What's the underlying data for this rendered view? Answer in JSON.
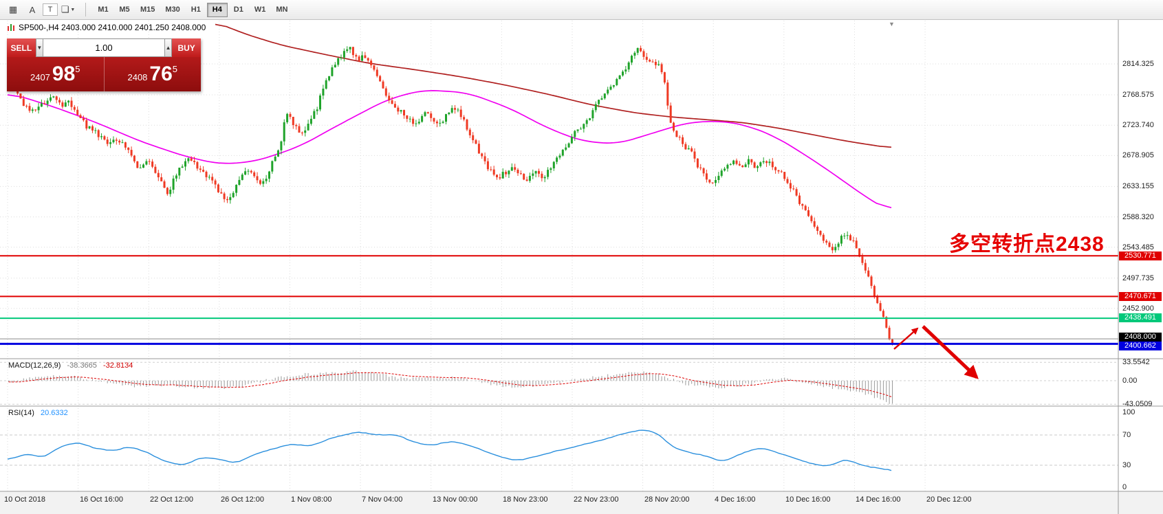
{
  "toolbar": {
    "cursor_icon_label": "A",
    "text_icon_label": "T",
    "timeframes": [
      {
        "label": "M1",
        "active": false
      },
      {
        "label": "M5",
        "active": false
      },
      {
        "label": "M15",
        "active": false
      },
      {
        "label": "M30",
        "active": false
      },
      {
        "label": "H1",
        "active": false
      },
      {
        "label": "H4",
        "active": true
      },
      {
        "label": "D1",
        "active": false
      },
      {
        "label": "W1",
        "active": false
      },
      {
        "label": "MN",
        "active": false
      }
    ]
  },
  "chart": {
    "header": "SP500-,H4  2403.000 2410.000 2401.250 2408.000",
    "symbol": "SP500-",
    "period": "H4",
    "ohlc": {
      "open": "2403.000",
      "high": "2410.000",
      "low": "2401.250",
      "close": "2408.000"
    }
  },
  "trade_panel": {
    "sell_label": "SELL",
    "buy_label": "BUY",
    "volume": "1.00",
    "bid": {
      "main": "2407",
      "pips": "98",
      "point": "5"
    },
    "ask": {
      "main": "2408",
      "pips": "76",
      "point": "5"
    }
  },
  "annotation": {
    "text": "多空转折点2438",
    "color": "#e60000"
  },
  "price_axis": {
    "labels": [
      "2814.325",
      "2768.575",
      "2723.740",
      "2678.905",
      "2633.155",
      "2588.320",
      "2543.485",
      "2497.735",
      "2452.900"
    ]
  },
  "hlines": [
    {
      "label": "2530.771",
      "price": 2530.771,
      "color": "#e00000",
      "lw": 2
    },
    {
      "label": "2470.671",
      "price": 2470.671,
      "color": "#e00000",
      "lw": 2
    },
    {
      "label": "2438.491",
      "price": 2438.491,
      "color": "#00c87a",
      "lw": 2
    },
    {
      "label": "2400.662",
      "price": 2400.662,
      "color": "#0000e0",
      "lw": 3
    }
  ],
  "current_price": {
    "label": "2408.000",
    "price": 2408.0
  },
  "macd": {
    "name": "MACD(12,26,9)",
    "value": "-38.3665",
    "signal_value": "-32.8134",
    "axis_labels": [
      "33.5542",
      "0.00",
      "-43.0509"
    ]
  },
  "rsi": {
    "name": "RSI(14)",
    "value": "20.6332",
    "axis_labels": [
      "100",
      "70",
      "30",
      "0"
    ]
  },
  "time_axis": {
    "labels": [
      "10 Oct 2018",
      "16 Oct 16:00",
      "22 Oct 12:00",
      "26 Oct 12:00",
      "1 Nov 08:00",
      "7 Nov 04:00",
      "13 Nov 00:00",
      "18 Nov 23:00",
      "22 Nov 23:00",
      "28 Nov 20:00",
      "4 Dec 16:00",
      "10 Dec 16:00",
      "14 Dec 16:00",
      "20 Dec 12:00"
    ]
  },
  "chart_data": {
    "type": "candlestick",
    "symbol": "SP500-",
    "timeframe": "H4",
    "title": "SP500-,H4",
    "current_bar": {
      "open": 2403.0,
      "high": 2410.0,
      "low": 2401.25,
      "close": 2408.0
    },
    "bid": 2407.985,
    "ask": 2408.765,
    "price_axis_ticks": [
      2814.325,
      2768.575,
      2723.74,
      2678.905,
      2633.155,
      2588.32,
      2543.485,
      2497.735,
      2452.9
    ],
    "x_tick_labels": [
      "10 Oct 2018",
      "16 Oct 16:00",
      "22 Oct 12:00",
      "26 Oct 12:00",
      "1 Nov 08:00",
      "7 Nov 04:00",
      "13 Nov 00:00",
      "18 Nov 23:00",
      "22 Nov 23:00",
      "28 Nov 20:00",
      "4 Dec 16:00",
      "10 Dec 16:00",
      "14 Dec 16:00",
      "20 Dec 12:00"
    ],
    "horizontal_lines": [
      2530.771,
      2470.671,
      2438.491,
      2400.662
    ],
    "up_color": "#1fa32a",
    "down_color": "#ef3a24",
    "price_path": [
      [
        0.0,
        2788
      ],
      [
        0.006,
        2804
      ],
      [
        0.014,
        2772
      ],
      [
        0.022,
        2752
      ],
      [
        0.032,
        2742
      ],
      [
        0.042,
        2756
      ],
      [
        0.052,
        2766
      ],
      [
        0.062,
        2752
      ],
      [
        0.072,
        2758
      ],
      [
        0.082,
        2738
      ],
      [
        0.092,
        2722
      ],
      [
        0.103,
        2712
      ],
      [
        0.113,
        2698
      ],
      [
        0.123,
        2706
      ],
      [
        0.133,
        2696
      ],
      [
        0.142,
        2678
      ],
      [
        0.15,
        2658
      ],
      [
        0.158,
        2672
      ],
      [
        0.166,
        2662
      ],
      [
        0.175,
        2640
      ],
      [
        0.183,
        2620
      ],
      [
        0.19,
        2645
      ],
      [
        0.198,
        2660
      ],
      [
        0.207,
        2673
      ],
      [
        0.217,
        2662
      ],
      [
        0.226,
        2649
      ],
      [
        0.235,
        2638
      ],
      [
        0.243,
        2622
      ],
      [
        0.251,
        2610
      ],
      [
        0.258,
        2626
      ],
      [
        0.266,
        2648
      ],
      [
        0.275,
        2656
      ],
      [
        0.283,
        2646
      ],
      [
        0.291,
        2636
      ],
      [
        0.3,
        2662
      ],
      [
        0.31,
        2692
      ],
      [
        0.318,
        2742
      ],
      [
        0.326,
        2726
      ],
      [
        0.334,
        2708
      ],
      [
        0.342,
        2726
      ],
      [
        0.352,
        2748
      ],
      [
        0.362,
        2788
      ],
      [
        0.372,
        2812
      ],
      [
        0.382,
        2830
      ],
      [
        0.39,
        2840
      ],
      [
        0.398,
        2818
      ],
      [
        0.406,
        2826
      ],
      [
        0.414,
        2812
      ],
      [
        0.422,
        2792
      ],
      [
        0.43,
        2772
      ],
      [
        0.438,
        2756
      ],
      [
        0.447,
        2744
      ],
      [
        0.456,
        2732
      ],
      [
        0.465,
        2722
      ],
      [
        0.474,
        2742
      ],
      [
        0.483,
        2734
      ],
      [
        0.492,
        2726
      ],
      [
        0.501,
        2744
      ],
      [
        0.51,
        2748
      ],
      [
        0.519,
        2728
      ],
      [
        0.528,
        2706
      ],
      [
        0.537,
        2682
      ],
      [
        0.546,
        2660
      ],
      [
        0.555,
        2646
      ],
      [
        0.564,
        2652
      ],
      [
        0.573,
        2658
      ],
      [
        0.582,
        2650
      ],
      [
        0.591,
        2644
      ],
      [
        0.6,
        2654
      ],
      [
        0.609,
        2646
      ],
      [
        0.618,
        2662
      ],
      [
        0.628,
        2684
      ],
      [
        0.638,
        2702
      ],
      [
        0.648,
        2718
      ],
      [
        0.658,
        2730
      ],
      [
        0.668,
        2752
      ],
      [
        0.678,
        2772
      ],
      [
        0.688,
        2786
      ],
      [
        0.698,
        2800
      ],
      [
        0.706,
        2820
      ],
      [
        0.714,
        2840
      ],
      [
        0.722,
        2824
      ],
      [
        0.73,
        2812
      ],
      [
        0.738,
        2818
      ],
      [
        0.745,
        2790
      ],
      [
        0.752,
        2728
      ],
      [
        0.76,
        2708
      ],
      [
        0.768,
        2694
      ],
      [
        0.776,
        2682
      ],
      [
        0.784,
        2662
      ],
      [
        0.792,
        2648
      ],
      [
        0.8,
        2636
      ],
      [
        0.808,
        2652
      ],
      [
        0.816,
        2664
      ],
      [
        0.824,
        2670
      ],
      [
        0.832,
        2662
      ],
      [
        0.84,
        2672
      ],
      [
        0.848,
        2660
      ],
      [
        0.856,
        2676
      ],
      [
        0.864,
        2668
      ],
      [
        0.872,
        2660
      ],
      [
        0.88,
        2648
      ],
      [
        0.888,
        2634
      ],
      [
        0.896,
        2616
      ],
      [
        0.904,
        2598
      ],
      [
        0.912,
        2582
      ],
      [
        0.92,
        2566
      ],
      [
        0.928,
        2550
      ],
      [
        0.936,
        2538
      ],
      [
        0.944,
        2556
      ],
      [
        0.952,
        2564
      ],
      [
        0.96,
        2548
      ],
      [
        0.968,
        2528
      ],
      [
        0.976,
        2498
      ],
      [
        0.984,
        2468
      ],
      [
        0.99,
        2450
      ],
      [
        0.995,
        2438
      ],
      [
        1.0,
        2404
      ]
    ],
    "ma_fast": {
      "name": "MA-fast",
      "color": "#f000f0",
      "points": [
        [
          0.0,
          2772
        ],
        [
          0.05,
          2752
        ],
        [
          0.1,
          2728
        ],
        [
          0.15,
          2700
        ],
        [
          0.2,
          2678
        ],
        [
          0.24,
          2666
        ],
        [
          0.28,
          2670
        ],
        [
          0.33,
          2692
        ],
        [
          0.38,
          2728
        ],
        [
          0.43,
          2762
        ],
        [
          0.47,
          2776
        ],
        [
          0.52,
          2772
        ],
        [
          0.57,
          2748
        ],
        [
          0.61,
          2720
        ],
        [
          0.65,
          2700
        ],
        [
          0.69,
          2696
        ],
        [
          0.73,
          2712
        ],
        [
          0.77,
          2728
        ],
        [
          0.81,
          2730
        ],
        [
          0.84,
          2722
        ],
        [
          0.87,
          2706
        ],
        [
          0.9,
          2682
        ],
        [
          0.93,
          2656
        ],
        [
          0.96,
          2628
        ],
        [
          0.98,
          2610
        ],
        [
          1.0,
          2596
        ]
      ]
    },
    "ma_slow": {
      "name": "MA-slow",
      "color": "#b02020",
      "points": [
        [
          0.235,
          2876
        ],
        [
          0.27,
          2858
        ],
        [
          0.31,
          2842
        ],
        [
          0.36,
          2828
        ],
        [
          0.41,
          2815
        ],
        [
          0.46,
          2806
        ],
        [
          0.51,
          2796
        ],
        [
          0.56,
          2784
        ],
        [
          0.61,
          2770
        ],
        [
          0.66,
          2754
        ],
        [
          0.71,
          2742
        ],
        [
          0.75,
          2736
        ],
        [
          0.79,
          2732
        ],
        [
          0.83,
          2728
        ],
        [
          0.87,
          2720
        ],
        [
          0.91,
          2710
        ],
        [
          0.95,
          2700
        ],
        [
          1.0,
          2690
        ]
      ]
    },
    "macd": {
      "params": "12,26,9",
      "main": -38.3665,
      "signal": -32.8134,
      "range": [
        -43.0509,
        33.5542
      ],
      "shape": [
        [
          0.0,
          -4
        ],
        [
          0.03,
          7
        ],
        [
          0.06,
          10
        ],
        [
          0.09,
          3
        ],
        [
          0.12,
          -6
        ],
        [
          0.15,
          -11
        ],
        [
          0.18,
          -8
        ],
        [
          0.21,
          -12
        ],
        [
          0.24,
          -14
        ],
        [
          0.27,
          -8
        ],
        [
          0.3,
          4
        ],
        [
          0.33,
          11
        ],
        [
          0.36,
          14
        ],
        [
          0.39,
          17
        ],
        [
          0.42,
          12
        ],
        [
          0.45,
          3
        ],
        [
          0.48,
          7
        ],
        [
          0.51,
          5
        ],
        [
          0.54,
          -5
        ],
        [
          0.57,
          -12
        ],
        [
          0.6,
          -9
        ],
        [
          0.63,
          -2
        ],
        [
          0.66,
          6
        ],
        [
          0.69,
          12
        ],
        [
          0.72,
          16
        ],
        [
          0.74,
          10
        ],
        [
          0.76,
          -4
        ],
        [
          0.78,
          -10
        ],
        [
          0.81,
          -12
        ],
        [
          0.84,
          -6
        ],
        [
          0.86,
          2
        ],
        [
          0.88,
          4
        ],
        [
          0.9,
          -4
        ],
        [
          0.92,
          -10
        ],
        [
          0.94,
          -15
        ],
        [
          0.96,
          -20
        ],
        [
          0.98,
          -30
        ],
        [
          0.99,
          -38
        ],
        [
          1.0,
          -43
        ]
      ]
    },
    "rsi": {
      "period": 14,
      "value": 20.6332,
      "levels": [
        70,
        30
      ],
      "shape": [
        [
          0.0,
          38
        ],
        [
          0.02,
          45
        ],
        [
          0.04,
          40
        ],
        [
          0.06,
          55
        ],
        [
          0.08,
          60
        ],
        [
          0.1,
          52
        ],
        [
          0.12,
          48
        ],
        [
          0.14,
          55
        ],
        [
          0.16,
          45
        ],
        [
          0.18,
          35
        ],
        [
          0.2,
          30
        ],
        [
          0.22,
          42
        ],
        [
          0.24,
          38
        ],
        [
          0.26,
          32
        ],
        [
          0.28,
          45
        ],
        [
          0.3,
          52
        ],
        [
          0.32,
          58
        ],
        [
          0.34,
          55
        ],
        [
          0.36,
          62
        ],
        [
          0.38,
          70
        ],
        [
          0.4,
          75
        ],
        [
          0.42,
          68
        ],
        [
          0.44,
          72
        ],
        [
          0.46,
          60
        ],
        [
          0.48,
          55
        ],
        [
          0.5,
          62
        ],
        [
          0.52,
          58
        ],
        [
          0.54,
          48
        ],
        [
          0.56,
          40
        ],
        [
          0.58,
          35
        ],
        [
          0.6,
          42
        ],
        [
          0.62,
          48
        ],
        [
          0.64,
          55
        ],
        [
          0.66,
          60
        ],
        [
          0.68,
          65
        ],
        [
          0.7,
          72
        ],
        [
          0.72,
          78
        ],
        [
          0.74,
          70
        ],
        [
          0.75,
          55
        ],
        [
          0.77,
          48
        ],
        [
          0.79,
          42
        ],
        [
          0.81,
          35
        ],
        [
          0.83,
          45
        ],
        [
          0.85,
          52
        ],
        [
          0.87,
          48
        ],
        [
          0.89,
          40
        ],
        [
          0.91,
          32
        ],
        [
          0.93,
          28
        ],
        [
          0.95,
          38
        ],
        [
          0.96,
          33
        ],
        [
          0.97,
          30
        ],
        [
          0.98,
          25
        ],
        [
          0.99,
          28
        ],
        [
          1.0,
          21
        ]
      ]
    }
  }
}
